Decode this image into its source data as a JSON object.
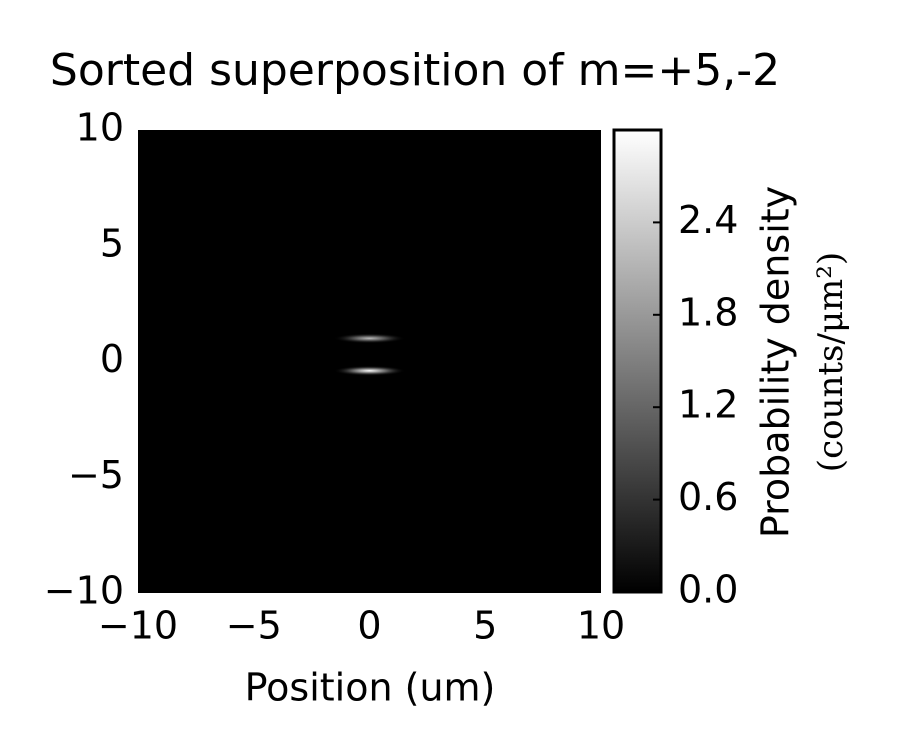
{
  "chart_data": {
    "type": "heatmap",
    "title": "Sorted superposition of m=+5,-2",
    "xlabel": "Position (um)",
    "colorbar_label": [
      "Probability density",
      "(counts/μm²)"
    ],
    "cmap": "gray",
    "xlim": [
      -10,
      10
    ],
    "ylim": [
      -10,
      10
    ],
    "clim": [
      0,
      3.0
    ],
    "xticks": [
      {
        "value": -10,
        "label": "−10"
      },
      {
        "value": -5,
        "label": "−5"
      },
      0,
      5,
      10
    ],
    "yticks": [
      {
        "value": -10,
        "label": "−10"
      },
      {
        "value": -5,
        "label": "−5"
      },
      0,
      5,
      10
    ],
    "cticks": [
      {
        "value": 0,
        "label": "0.0"
      },
      0.6,
      1.2,
      1.8,
      2.4
    ],
    "spots": [
      {
        "x": 0,
        "y": 1.0,
        "value": 2.2
      },
      {
        "x": 0,
        "y": -0.4,
        "value": 3.0
      }
    ]
  }
}
